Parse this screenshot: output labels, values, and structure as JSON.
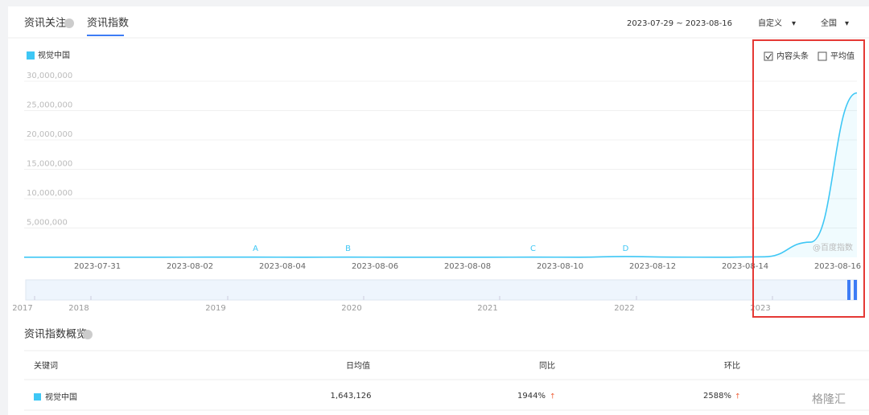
{
  "tabs": [
    "资讯关注",
    "资讯指数"
  ],
  "date_range": "2023-07-29 ~ 2023-08-16",
  "filters": [
    "自定义",
    "全国"
  ],
  "options": [
    {
      "label": "内容头条",
      "checked": true
    },
    {
      "label": "平均值",
      "checked": false
    }
  ],
  "chart_data": {
    "type": "line",
    "x": [
      null,
      null,
      "2023-07-31",
      null,
      "2023-08-02",
      null,
      "2023-08-04",
      null,
      "2023-08-06",
      null,
      "2023-08-08",
      null,
      "2023-08-10",
      null,
      "2023-08-12",
      null,
      "2023-08-14",
      null,
      "2023-08-16"
    ],
    "series": [
      {
        "name": "视觉中国",
        "color": "#3ec7f5",
        "values": [
          30000,
          30000,
          30000,
          30000,
          40000,
          40000,
          30000,
          40000,
          30000,
          30000,
          30000,
          40000,
          30000,
          150000,
          40000,
          30000,
          100000,
          2600000,
          28000000
        ]
      }
    ],
    "ylim": [
      0,
      30000000
    ],
    "yticks": [
      {
        "value": 5000000,
        "label": "5,000,000"
      },
      {
        "value": 10000000,
        "label": "10,000,000"
      },
      {
        "value": 15000000,
        "label": "15,000,000"
      },
      {
        "value": 20000000,
        "label": "20,000,000"
      },
      {
        "value": 25000000,
        "label": "25,000,000"
      },
      {
        "value": 30000000,
        "label": "30,000,000"
      }
    ],
    "annotations": [
      "A",
      "B",
      "C",
      "D"
    ],
    "watermark": "@百度指数",
    "grid": true
  },
  "timeline": {
    "labels": [
      "2017",
      "2018",
      "2019",
      "2020",
      "2021",
      "2022",
      "2023"
    ]
  },
  "overview": {
    "title": "资讯指数概览",
    "columns": [
      "关键词",
      "日均值",
      "同比",
      "环比"
    ],
    "rows": [
      [
        "视觉中国",
        "1,643,126",
        "1944%",
        "2588%"
      ]
    ]
  },
  "watermark": "格隆汇"
}
